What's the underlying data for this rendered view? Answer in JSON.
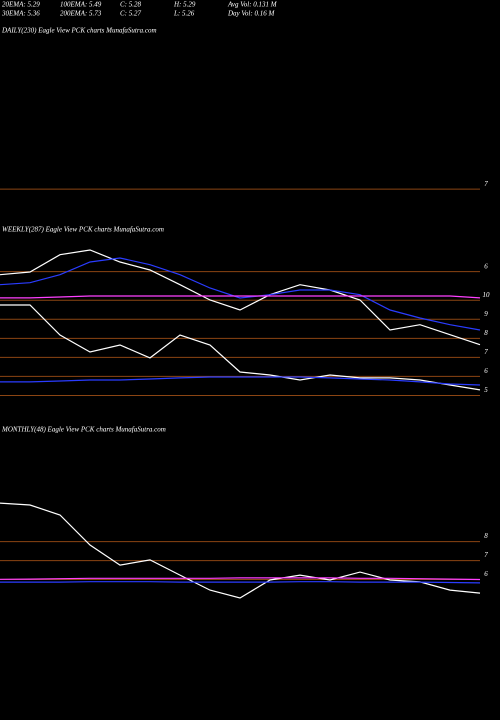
{
  "header": {
    "row1": [
      "20EMA: 5.29",
      "100EMA: 5.49",
      "C: 5.28",
      "H: 5.29",
      "Avg Vol: 0.131 M"
    ],
    "row2": [
      "30EMA: 5.36",
      "200EMA: 5.73",
      "C: 5.27",
      "L: 5.26",
      "Day Vol: 0.16 M"
    ]
  },
  "chart_data": [
    {
      "type": "line",
      "title": "DAILY(230) Eagle View  PCK charts MunafaSutra.com",
      "categories": [],
      "series": [],
      "ylim": [
        6.8,
        8
      ],
      "yticks": [
        7
      ],
      "grid": true,
      "grid_color": "#8b4513"
    },
    {
      "type": "line",
      "title": "WEEKLY(287) Eagle View  PCK charts MunafaSutra.com",
      "categories": [
        null,
        null,
        null,
        null,
        null,
        null,
        null,
        null,
        null,
        null,
        null,
        null,
        null,
        null,
        null,
        null,
        null
      ],
      "ylim": [
        4.5,
        12.9
      ],
      "yticks": [
        5,
        6,
        7,
        8,
        9,
        10
      ],
      "y2lim": [
        4,
        6.4
      ],
      "y2ticks": [
        6
      ],
      "grid": true,
      "grid_color": "#8b4513",
      "series": [
        {
          "color": "#ffffff",
          "axis": "y2",
          "values": [
            5.88,
            5.92,
            6.18,
            6.25,
            6.07,
            5.95,
            5.73,
            5.5,
            5.35,
            5.58,
            5.73,
            5.65,
            5.5,
            5.05,
            5.13,
            4.98,
            4.83
          ]
        },
        {
          "color": "#2a3cff",
          "axis": "y2",
          "values": [
            5.73,
            5.76,
            5.88,
            6.07,
            6.13,
            6.03,
            5.88,
            5.68,
            5.53,
            5.58,
            5.65,
            5.65,
            5.58,
            5.35,
            5.23,
            5.13,
            5.05
          ]
        },
        {
          "color": "#ff40ff",
          "values": [
            9.86,
            9.86,
            9.91,
            9.96,
            9.96,
            9.96,
            9.96,
            9.96,
            9.96,
            9.96,
            9.96,
            9.96,
            9.96,
            9.96,
            9.96,
            9.96,
            9.86
          ]
        },
        {
          "color": "#ffffff",
          "values": [
            9.49,
            9.49,
            7.91,
            7.02,
            7.39,
            6.71,
            7.91,
            7.39,
            5.97,
            5.81,
            5.55,
            5.81,
            5.66,
            5.66,
            5.55,
            5.29,
            5.03
          ]
        },
        {
          "color": "#2a3cff",
          "values": [
            5.45,
            5.45,
            5.5,
            5.55,
            5.55,
            5.6,
            5.66,
            5.71,
            5.71,
            5.71,
            5.71,
            5.66,
            5.6,
            5.55,
            5.45,
            5.34,
            5.29
          ]
        }
      ]
    },
    {
      "type": "line",
      "title": "MONTHLY(48) Eagle View  PCK charts MunafaSutra.com",
      "categories": [
        null,
        null,
        null,
        null,
        null,
        null,
        null,
        null,
        null,
        null,
        null,
        null,
        null,
        null,
        null,
        null,
        null
      ],
      "ylim": [
        3.6,
        13.1
      ],
      "yticks": [
        6,
        7,
        8
      ],
      "grid": true,
      "grid_color": "#8b4513",
      "series": [
        {
          "color": "#ffffff",
          "values": [
            9.77,
            9.67,
            9.14,
            7.56,
            6.5,
            6.77,
            5.97,
            5.18,
            4.76,
            5.71,
            5.97,
            5.71,
            6.13,
            5.71,
            5.61,
            5.18,
            5.02
          ]
        },
        {
          "color": "#2a3cff",
          "values": [
            5.6,
            5.6,
            5.6,
            5.62,
            5.62,
            5.62,
            5.6,
            5.6,
            5.6,
            5.6,
            5.62,
            5.62,
            5.6,
            5.6,
            5.6,
            5.58,
            5.56
          ]
        },
        {
          "color": "#ff40ff",
          "values": [
            5.75,
            5.76,
            5.78,
            5.8,
            5.8,
            5.8,
            5.8,
            5.8,
            5.82,
            5.82,
            5.82,
            5.82,
            5.8,
            5.8,
            5.78,
            5.76,
            5.74
          ]
        }
      ]
    }
  ]
}
